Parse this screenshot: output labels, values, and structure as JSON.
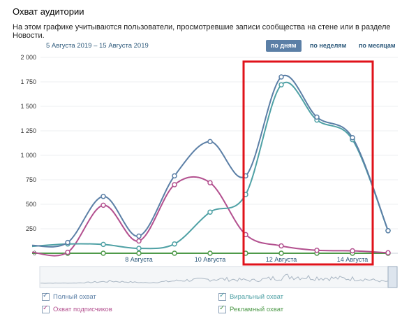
{
  "page": {
    "title": "Охват аудитории",
    "description": "На этом графике учитываются пользователи, просмотревшие записи сообщества на стене или в разделе Новости.",
    "date_range": "5 Августа 2019 – 15 Августа 2019"
  },
  "period_tabs": [
    {
      "label": "по дням",
      "active": true
    },
    {
      "label": "по неделям",
      "active": false
    },
    {
      "label": "по месяцам",
      "active": false
    }
  ],
  "legend": [
    {
      "label": "Полный охват",
      "color": "#5b7fa6",
      "checked": true
    },
    {
      "label": "Виральный охват",
      "color": "#4fa1a5",
      "checked": true
    },
    {
      "label": "Охват подписчиков",
      "color": "#b3508f",
      "checked": true
    },
    {
      "label": "Рекламный охват",
      "color": "#4f9a4a",
      "checked": true
    }
  ],
  "highlight_color": "#e0121a",
  "chart_data": {
    "type": "line",
    "x": [
      "5 Августа",
      "6 Августа",
      "7 Августа",
      "8 Августа",
      "9 Августа",
      "10 Августа",
      "11 Августа",
      "12 Августа",
      "13 Августа",
      "14 Августа",
      "15 Августа"
    ],
    "x_tick_labels": [
      "8 Августа",
      "10 Августа",
      "12 Августа",
      "14 Августа"
    ],
    "y_ticks": [
      "0",
      "250",
      "500",
      "750",
      "1 000",
      "1 250",
      "1 500",
      "1 750",
      "2 000"
    ],
    "ylim": [
      0,
      2000
    ],
    "grid": true,
    "series": [
      {
        "name": "Полный охват",
        "color": "#5b7fa6",
        "values": [
          80,
          110,
          580,
          175,
          790,
          1140,
          790,
          1800,
          1390,
          1180,
          230
        ]
      },
      {
        "name": "Виральный охват",
        "color": "#4fa1a5",
        "values": [
          70,
          95,
          90,
          50,
          95,
          420,
          600,
          1720,
          1360,
          1160,
          230
        ]
      },
      {
        "name": "Охват подписчиков",
        "color": "#b3508f",
        "values": [
          10,
          10,
          490,
          125,
          700,
          720,
          190,
          75,
          30,
          25,
          5
        ]
      },
      {
        "name": "Рекламный охват",
        "color": "#4f9a4a",
        "values": [
          0,
          0,
          0,
          0,
          0,
          0,
          0,
          0,
          0,
          0,
          0
        ]
      }
    ]
  }
}
